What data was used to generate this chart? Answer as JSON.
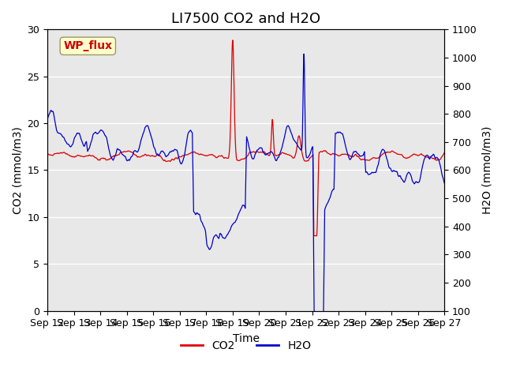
{
  "title": "LI7500 CO2 and H2O",
  "xlabel": "Time",
  "ylabel_left": "CO2 (mmol/m3)",
  "ylabel_right": "H2O (mmol/m3)",
  "ylim_left": [
    0,
    30
  ],
  "ylim_right": [
    100,
    1100
  ],
  "yticks_left": [
    0,
    5,
    10,
    15,
    20,
    25,
    30
  ],
  "yticks_right": [
    100,
    200,
    300,
    400,
    500,
    600,
    700,
    800,
    900,
    1000,
    1100
  ],
  "xtick_labels": [
    "Sep 12",
    "Sep 13",
    "Sep 14",
    "Sep 15",
    "Sep 16",
    "Sep 17",
    "Sep 18",
    "Sep 19",
    "Sep 20",
    "Sep 21",
    "Sep 22",
    "Sep 23",
    "Sep 24",
    "Sep 25",
    "Sep 26",
    "Sep 27"
  ],
  "annotation_text": "WP_flux",
  "annotation_color": "#cc0000",
  "annotation_bg": "#ffffcc",
  "co2_color": "#dd0000",
  "h2o_color": "#0000cc",
  "background_color": "#e8e8e8",
  "grid_color": "#ffffff",
  "title_fontsize": 13,
  "axis_label_fontsize": 10,
  "tick_fontsize": 9,
  "legend_fontsize": 10
}
